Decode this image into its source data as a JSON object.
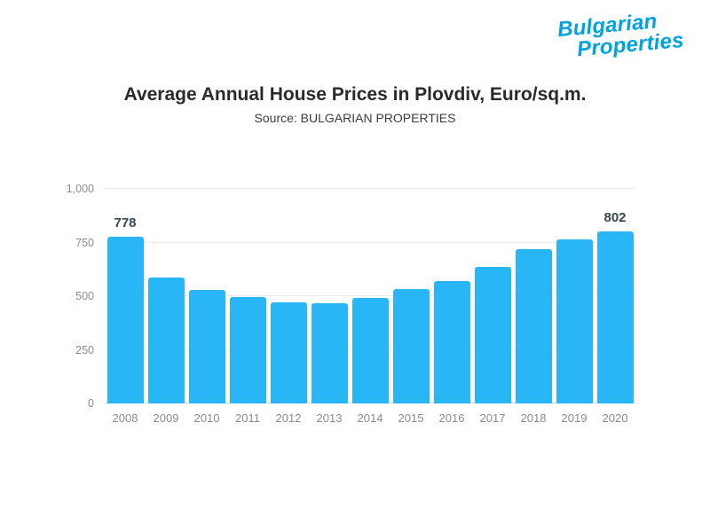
{
  "logo": {
    "line1": "Bulgarian",
    "line2": "Properties"
  },
  "header": {
    "title": "Average Annual House Prices in Plovdiv, Euro/sq.m.",
    "subtitle": "Source: BULGARIAN PROPERTIES"
  },
  "colors": {
    "bar": "#29b6f6",
    "grid": "#ebebeb",
    "baseline": "#d6d6d6",
    "axis_text": "#8c8c8c",
    "title_text": "#2b2b2b",
    "label_text": "#37474f",
    "logo_blue": "#00a3e0"
  },
  "chart_data": {
    "type": "bar",
    "title": "Average Annual House Prices in Plovdiv, Euro/sq.m.",
    "subtitle": "Source: BULGARIAN PROPERTIES",
    "categories": [
      "2008",
      "2009",
      "2010",
      "2011",
      "2012",
      "2013",
      "2014",
      "2015",
      "2016",
      "2017",
      "2018",
      "2019",
      "2020"
    ],
    "values": [
      778,
      588,
      528,
      495,
      472,
      468,
      490,
      532,
      572,
      638,
      720,
      765,
      802
    ],
    "point_labels": [
      "778",
      "",
      "",
      "",
      "",
      "",
      "",
      "",
      "",
      "",
      "",
      "",
      "802"
    ],
    "xlabel": "",
    "ylabel": "",
    "ylim": [
      0,
      1000
    ],
    "yticks": [
      0,
      250,
      500,
      750,
      1000
    ],
    "ytick_labels": [
      "0",
      "250",
      "500",
      "750",
      "1,000"
    ],
    "grid": true,
    "legend": false
  }
}
